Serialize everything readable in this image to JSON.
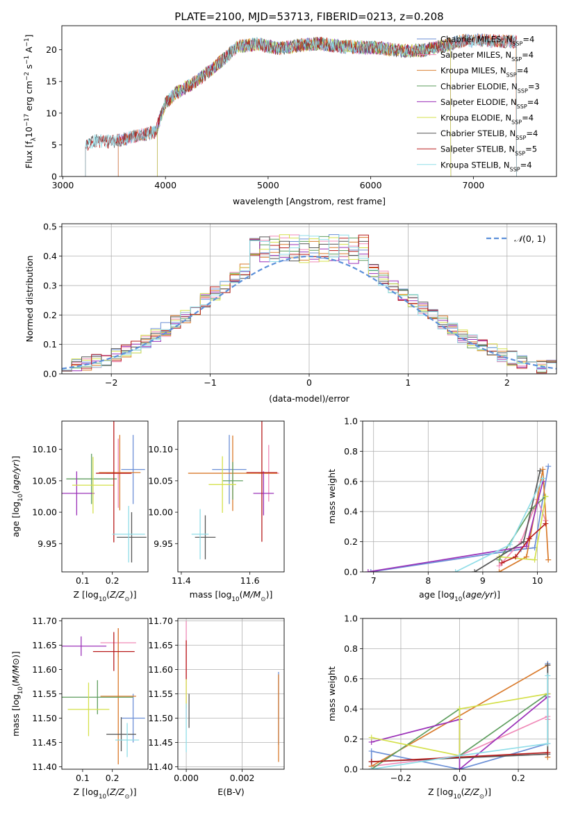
{
  "chart_data": [
    {
      "type": "line",
      "title": "PLATE=2100, MJD=53713, FIBERID=0213, z=0.208",
      "xlabel": "wavelength [Angstrom, rest frame]",
      "ylabel_parts": [
        "Flux [f",
        "λ",
        "10",
        "−17",
        " erg cm",
        "−2",
        " s",
        "−1",
        " A",
        "−1",
        "]"
      ],
      "xlim": [
        2990,
        7810
      ],
      "ylim": [
        0,
        23.8
      ],
      "xticks": [
        "3000",
        "4000",
        "5000",
        "6000",
        "7000"
      ],
      "xtick_values": [
        3000,
        4000,
        5000,
        6000,
        7000
      ],
      "yticks": [
        "0",
        "5",
        "10",
        "15",
        "20"
      ],
      "ytick_values": [
        0,
        5,
        10,
        15,
        20
      ],
      "grid": false,
      "legend_position": "top-right",
      "series": [
        {
          "name_parts": [
            "Chabrier MILES, N",
            "SSP",
            "=4"
          ],
          "color": "#6b8fd6",
          "start": 3540,
          "end": 7420
        },
        {
          "name_parts": [
            "Salpeter MILES, N",
            "SSP",
            "=4"
          ],
          "color": "#f08ab8",
          "start": 3540,
          "end": 7420
        },
        {
          "name_parts": [
            "Kroupa MILES, N",
            "SSP",
            "=4"
          ],
          "color": "#d97a2b",
          "start": 3540,
          "end": 7420
        },
        {
          "name_parts": [
            "Chabrier ELODIE, N",
            "SSP",
            "=3"
          ],
          "color": "#5f9e5f",
          "start": 3920,
          "end": 6780
        },
        {
          "name_parts": [
            "Salpeter ELODIE, N",
            "SSP",
            "=4"
          ],
          "color": "#9b30b8",
          "start": 3920,
          "end": 6780
        },
        {
          "name_parts": [
            "Kroupa ELODIE, N",
            "SSP",
            "=4"
          ],
          "color": "#d4e04a",
          "start": 3920,
          "end": 6780
        },
        {
          "name_parts": [
            "Chabrier STELIB, N",
            "SSP",
            "=4"
          ],
          "color": "#555555",
          "start": 3220,
          "end": 7420
        },
        {
          "name_parts": [
            "Salpeter STELIB, N",
            "SSP",
            "=5"
          ],
          "color": "#b81b1b",
          "start": 3220,
          "end": 7420
        },
        {
          "name_parts": [
            "Kroupa STELIB, N",
            "SSP",
            "=4"
          ],
          "color": "#8fdde8",
          "start": 3220,
          "end": 7420
        }
      ],
      "continuum": {
        "x": [
          3220,
          3300,
          3500,
          3700,
          3900,
          4000,
          4100,
          4300,
          4500,
          4700,
          4900,
          5100,
          5300,
          5500,
          5700,
          5900,
          6100,
          6300,
          6500,
          6700,
          6900,
          7100,
          7300,
          7420
        ],
        "y": [
          5.0,
          5.6,
          5.5,
          6.3,
          7.0,
          11.5,
          13.2,
          15.0,
          17.6,
          20.5,
          20.9,
          20.2,
          20.7,
          21.0,
          20.5,
          20.4,
          20.3,
          19.8,
          19.9,
          20.6,
          21.4,
          21.5,
          21.3,
          21.3
        ]
      }
    },
    {
      "type": "histogram",
      "xlabel": "(data-model)/error",
      "ylabel": "Normed distribution",
      "xlim": [
        -2.5,
        2.5
      ],
      "ylim": [
        0,
        0.51
      ],
      "xticks": [
        "−2",
        "−1",
        "0",
        "1",
        "2"
      ],
      "xtick_values": [
        -2,
        -1,
        0,
        1,
        2
      ],
      "yticks": [
        "0.0",
        "0.1",
        "0.2",
        "0.3",
        "0.4",
        "0.5"
      ],
      "ytick_values": [
        0,
        0.1,
        0.2,
        0.3,
        0.4,
        0.5
      ],
      "grid": true,
      "legend_position": "top-right",
      "reference": {
        "name_parts": [
          "𝒩",
          "(0, 1)"
        ],
        "color": "#5b8fd9",
        "mu": 0,
        "sigma": 1
      },
      "bin_width": 0.1,
      "bin_start": -2.5,
      "series_colors": [
        "#6b8fd6",
        "#f08ab8",
        "#d97a2b",
        "#5f9e5f",
        "#9b30b8",
        "#d4e04a",
        "#555555",
        "#b81b1b",
        "#8fdde8"
      ]
    },
    {
      "type": "errorbar",
      "xlabel_parts": [
        "Z [log",
        "10",
        "(",
        "Z/Z",
        "⊙",
        ")]"
      ],
      "ylabel_parts": [
        "age  [log",
        "10",
        "(",
        "age/yr",
        ")]"
      ],
      "xlim": [
        0.03,
        0.32
      ],
      "ylim": [
        9.905,
        10.145
      ],
      "xticks": [
        "0.1",
        "0.2"
      ],
      "xtick_values": [
        0.1,
        0.2
      ],
      "yticks": [
        "9.95",
        "10.00",
        "10.05",
        "10.10"
      ],
      "ytick_values": [
        9.95,
        10.0,
        10.05,
        10.1
      ],
      "points": [
        {
          "x": 0.27,
          "y": 10.068,
          "xerr": 0.04,
          "yerr": 0.055,
          "color": "#6b8fd6"
        },
        {
          "x": 0.22,
          "y": 10.062,
          "xerr": 0.04,
          "yerr": 0.055,
          "color": "#f08ab8"
        },
        {
          "x": 0.225,
          "y": 10.063,
          "xerr": 0.07,
          "yerr": 0.06,
          "color": "#d97a2b"
        },
        {
          "x": 0.13,
          "y": 10.053,
          "xerr": 0.085,
          "yerr": 0.04,
          "color": "#5f9e5f"
        },
        {
          "x": 0.08,
          "y": 10.03,
          "xerr": 0.06,
          "yerr": 0.035,
          "color": "#9b30b8"
        },
        {
          "x": 0.135,
          "y": 10.043,
          "xerr": 0.07,
          "yerr": 0.045,
          "color": "#d4e04a"
        },
        {
          "x": 0.265,
          "y": 9.96,
          "xerr": 0.05,
          "yerr": 0.04,
          "color": "#555555"
        },
        {
          "x": 0.205,
          "y": 10.062,
          "xerr": 0.06,
          "yerr": 0.11,
          "color": "#b81b1b"
        },
        {
          "x": 0.255,
          "y": 9.965,
          "xerr": 0.055,
          "yerr": 0.045,
          "color": "#8fdde8"
        }
      ]
    },
    {
      "type": "errorbar",
      "xlabel_parts": [
        "mass [log",
        "10",
        "(",
        "M/M",
        "⊙",
        ")]"
      ],
      "xlim": [
        11.39,
        11.7
      ],
      "ylim": [
        9.905,
        10.145
      ],
      "xticks": [
        "11.4",
        "11.6"
      ],
      "xtick_values": [
        11.4,
        11.6
      ],
      "yticks": [
        "9.95",
        "10.00",
        "10.05",
        "10.10"
      ],
      "ytick_values": [
        9.95,
        10.0,
        10.05,
        10.1
      ],
      "points": [
        {
          "x": 11.54,
          "y": 10.068,
          "xerr": 0.05,
          "yerr": 0.055,
          "color": "#6b8fd6"
        },
        {
          "x": 11.655,
          "y": 10.062,
          "xerr": 0.03,
          "yerr": 0.045,
          "color": "#f08ab8"
        },
        {
          "x": 11.55,
          "y": 10.062,
          "xerr": 0.13,
          "yerr": 0.06,
          "color": "#d97a2b"
        },
        {
          "x": 11.55,
          "y": 10.05,
          "xerr": 0.03,
          "yerr": 0.03,
          "color": "#5f9e5f"
        },
        {
          "x": 11.64,
          "y": 10.03,
          "xerr": 0.03,
          "yerr": 0.035,
          "color": "#9b30b8"
        },
        {
          "x": 11.52,
          "y": 10.044,
          "xerr": 0.04,
          "yerr": 0.045,
          "color": "#d4e04a"
        },
        {
          "x": 11.47,
          "y": 9.96,
          "xerr": 0.03,
          "yerr": 0.035,
          "color": "#555555"
        },
        {
          "x": 11.635,
          "y": 10.063,
          "xerr": 0.045,
          "yerr": 0.11,
          "color": "#b81b1b"
        },
        {
          "x": 11.455,
          "y": 9.965,
          "xerr": 0.025,
          "yerr": 0.04,
          "color": "#8fdde8"
        }
      ]
    },
    {
      "type": "line",
      "xlabel_parts": [
        "age  [log",
        "10",
        "(",
        "age/yr",
        ")]"
      ],
      "ylabel": "mass weight",
      "xlim": [
        6.8,
        10.35
      ],
      "ylim": [
        0,
        1
      ],
      "xticks": [
        "7",
        "8",
        "9",
        "10"
      ],
      "xtick_values": [
        7,
        8,
        9,
        10
      ],
      "yticks": [
        "0.0",
        "0.2",
        "0.4",
        "0.6",
        "0.8",
        "1.0"
      ],
      "ytick_values": [
        0,
        0.2,
        0.4,
        0.6,
        0.8,
        1.0
      ],
      "grid": true,
      "series": [
        {
          "color": "#6b8fd6",
          "x": [
            6.95,
            9.7,
            9.95,
            10.2
          ],
          "y": [
            0.0,
            0.15,
            0.16,
            0.7
          ]
        },
        {
          "color": "#f08ab8",
          "x": [
            9.3,
            9.7,
            10.0,
            10.15
          ],
          "y": [
            0.04,
            0.2,
            0.48,
            0.34
          ]
        },
        {
          "color": "#d97a2b",
          "x": [
            9.3,
            9.8,
            10.1,
            10.2
          ],
          "y": [
            0.0,
            0.1,
            0.68,
            0.08
          ]
        },
        {
          "color": "#5f9e5f",
          "x": [
            9.3,
            9.9,
            10.15
          ],
          "y": [
            0.08,
            0.42,
            0.5
          ]
        },
        {
          "color": "#9b30b8",
          "x": [
            6.9,
            9.8,
            10.1
          ],
          "y": [
            0.0,
            0.17,
            0.6
          ]
        },
        {
          "color": "#d4e04a",
          "x": [
            9.3,
            9.95,
            10.15
          ],
          "y": [
            0.1,
            0.08,
            0.5
          ]
        },
        {
          "color": "#555555",
          "x": [
            8.85,
            9.75,
            10.05
          ],
          "y": [
            0.0,
            0.2,
            0.67
          ]
        },
        {
          "color": "#b81b1b",
          "x": [
            9.35,
            9.6,
            9.85,
            10.15
          ],
          "y": [
            0.06,
            0.1,
            0.22,
            0.32
          ]
        },
        {
          "color": "#8fdde8",
          "x": [
            8.5,
            9.5,
            10.1
          ],
          "y": [
            0.0,
            0.18,
            0.62
          ]
        }
      ]
    },
    {
      "type": "errorbar",
      "xlabel_parts": [
        "Z [log",
        "10",
        "(",
        "Z/Z",
        "⊙",
        ")]"
      ],
      "ylabel_parts": [
        "mass [log",
        "10",
        "(",
        "M/M",
        "⊙",
        ")]"
      ],
      "xlim": [
        0.03,
        0.32
      ],
      "ylim": [
        11.395,
        11.705
      ],
      "xticks": [
        "0.1",
        "0.2"
      ],
      "xtick_values": [
        0.1,
        0.2
      ],
      "yticks": [
        "11.40",
        "11.45",
        "11.50",
        "11.55",
        "11.60",
        "11.65",
        "11.70"
      ],
      "ytick_values": [
        11.4,
        11.45,
        11.5,
        11.55,
        11.6,
        11.65,
        11.7
      ],
      "points": [
        {
          "x": 0.27,
          "y": 11.5,
          "xerr": 0.04,
          "yerr": 0.05,
          "color": "#6b8fd6"
        },
        {
          "x": 0.22,
          "y": 11.655,
          "xerr": 0.06,
          "yerr": 0.03,
          "color": "#f08ab8"
        },
        {
          "x": 0.22,
          "y": 11.545,
          "xerr": 0.06,
          "yerr": 0.14,
          "color": "#d97a2b"
        },
        {
          "x": 0.15,
          "y": 11.543,
          "xerr": 0.12,
          "yerr": 0.035,
          "color": "#5f9e5f"
        },
        {
          "x": 0.095,
          "y": 11.648,
          "xerr": 0.085,
          "yerr": 0.02,
          "color": "#9b30b8"
        },
        {
          "x": 0.12,
          "y": 11.518,
          "xerr": 0.07,
          "yerr": 0.055,
          "color": "#d4e04a"
        },
        {
          "x": 0.23,
          "y": 11.467,
          "xerr": 0.05,
          "yerr": 0.035,
          "color": "#555555"
        },
        {
          "x": 0.205,
          "y": 11.637,
          "xerr": 0.07,
          "yerr": 0.04,
          "color": "#b81b1b"
        },
        {
          "x": 0.25,
          "y": 11.455,
          "xerr": 0.04,
          "yerr": 0.035,
          "color": "#8fdde8"
        }
      ]
    },
    {
      "type": "errorbar",
      "xlabel": "E(B-V)",
      "xlim": [
        -0.0003,
        0.0035
      ],
      "ylim": [
        11.395,
        11.705
      ],
      "xticks": [
        "0.000",
        "0.002"
      ],
      "xtick_values": [
        0,
        0.002
      ],
      "yticks": [
        "11.40",
        "11.45",
        "11.50",
        "11.55",
        "11.60",
        "11.65",
        "11.70"
      ],
      "ytick_values": [
        11.4,
        11.45,
        11.5,
        11.55,
        11.6,
        11.65,
        11.7
      ],
      "points": [
        {
          "x": 0.0033,
          "y": 11.52,
          "xerr": 0,
          "yerr": 0.075,
          "color": "#6b8fd6"
        },
        {
          "x": 0.0,
          "y": 11.6,
          "xerr": 0,
          "yerr": 0.1,
          "color": "#f08ab8"
        },
        {
          "x": 0.0033,
          "y": 11.5,
          "xerr": 0,
          "yerr": 0.09,
          "color": "#d97a2b"
        },
        {
          "x": 0.0001,
          "y": 11.515,
          "xerr": 0,
          "yerr": 0.035,
          "color": "#555555"
        },
        {
          "x": 0.0,
          "y": 11.55,
          "xerr": 0,
          "yerr": 0.03,
          "color": "#d4e04a"
        },
        {
          "x": 0.0,
          "y": 11.62,
          "xerr": 0,
          "yerr": 0.04,
          "color": "#b81b1b"
        },
        {
          "x": 0.0,
          "y": 11.48,
          "xerr": 0,
          "yerr": 0.05,
          "color": "#8fdde8"
        }
      ]
    },
    {
      "type": "line",
      "xlabel_parts": [
        "Z [log",
        "10",
        "(",
        "Z/Z",
        "⊙",
        ")]"
      ],
      "ylabel": "mass weight",
      "xlim": [
        -0.33,
        0.33
      ],
      "ylim": [
        0,
        1
      ],
      "xticks": [
        "−0.2",
        "0.0",
        "0.2"
      ],
      "xtick_values": [
        -0.2,
        0.0,
        0.2
      ],
      "yticks": [
        "0.0",
        "0.2",
        "0.4",
        "0.6",
        "0.8",
        "1.0"
      ],
      "ytick_values": [
        0,
        0.2,
        0.4,
        0.6,
        0.8,
        1.0
      ],
      "grid": true,
      "series": [
        {
          "color": "#6b8fd6",
          "x": [
            -0.3,
            -0.3,
            0.0,
            0.3,
            0.3
          ],
          "y": [
            0.0,
            0.12,
            0.0,
            0.17,
            0.7
          ]
        },
        {
          "color": "#f08ab8",
          "x": [
            -0.3,
            0.0,
            0.3,
            0.3
          ],
          "y": [
            0.02,
            0.09,
            0.35,
            0.33
          ]
        },
        {
          "color": "#d97a2b",
          "x": [
            -0.3,
            0.3,
            0.3
          ],
          "y": [
            0.02,
            0.69,
            0.08
          ]
        },
        {
          "color": "#5f9e5f",
          "x": [
            -0.3,
            0.0,
            0.0,
            0.3
          ],
          "y": [
            0.0,
            0.4,
            0.09,
            0.5
          ]
        },
        {
          "color": "#9b30b8",
          "x": [
            -0.3,
            0.0,
            0.0,
            0.3,
            0.3
          ],
          "y": [
            0.18,
            0.33,
            0.0,
            0.48,
            0.5
          ]
        },
        {
          "color": "#d4e04a",
          "x": [
            -0.3,
            0.0,
            0.0,
            0.3
          ],
          "y": [
            0.21,
            0.09,
            0.4,
            0.5
          ]
        },
        {
          "color": "#555555",
          "x": [
            -0.3,
            0.3,
            0.3
          ],
          "y": [
            0.05,
            0.1,
            0.69
          ]
        },
        {
          "color": "#b81b1b",
          "x": [
            -0.3,
            0.3
          ],
          "y": [
            0.05,
            0.11
          ]
        },
        {
          "color": "#8fdde8",
          "x": [
            -0.3,
            0.0,
            0.3,
            0.3
          ],
          "y": [
            0.0,
            0.09,
            0.17,
            0.62
          ]
        }
      ]
    }
  ]
}
